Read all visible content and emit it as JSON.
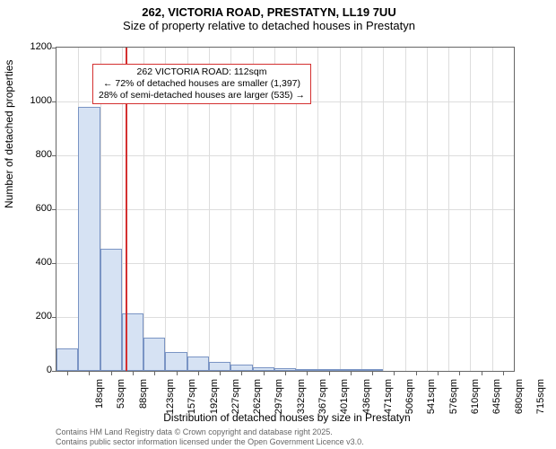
{
  "title": "262, VICTORIA ROAD, PRESTATYN, LL19 7UU",
  "subtitle": "Size of property relative to detached houses in Prestatyn",
  "chart": {
    "type": "histogram",
    "ylabel": "Number of detached properties",
    "xlabel": "Distribution of detached houses by size in Prestatyn",
    "ymax": 1200,
    "ytick_step": 200,
    "yticks": [
      0,
      200,
      400,
      600,
      800,
      1000,
      1200
    ],
    "xticks": [
      "18sqm",
      "53sqm",
      "88sqm",
      "123sqm",
      "157sqm",
      "192sqm",
      "227sqm",
      "262sqm",
      "297sqm",
      "332sqm",
      "367sqm",
      "401sqm",
      "436sqm",
      "471sqm",
      "506sqm",
      "541sqm",
      "576sqm",
      "610sqm",
      "645sqm",
      "680sqm",
      "715sqm"
    ],
    "values": [
      85,
      980,
      455,
      215,
      125,
      70,
      55,
      35,
      22,
      12,
      10,
      6,
      2,
      2,
      2,
      1,
      1,
      0,
      1,
      1,
      0
    ],
    "bar_fill": "#d6e2f3",
    "bar_border": "#7a94c4",
    "grid_color": "#dddddd",
    "marker_sqm": 112,
    "marker_color": "#d43030",
    "callout": {
      "line1": "262 VICTORIA ROAD: 112sqm",
      "line2": "← 72% of detached houses are smaller (1,397)",
      "line3": "28% of semi-detached houses are larger (535) →"
    }
  },
  "footer": {
    "line1": "Contains HM Land Registry data © Crown copyright and database right 2025.",
    "line2": "Contains public sector information licensed under the Open Government Licence v3.0."
  }
}
